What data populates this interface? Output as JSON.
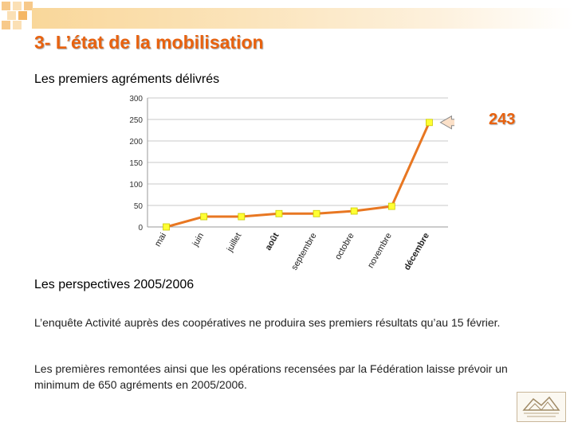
{
  "slide": {
    "title": "3- L’état de la mobilisation",
    "subtitle_agrements": "Les premiers agréments délivrés",
    "subtitle_perspectives": "Les perspectives 2005/2006",
    "paragraphs": [
      "L’enquête Activité auprès des coopératives ne produira ses premiers résultats qu’au 15 février.",
      "Les premières remontées ainsi que les opérations recensées par la Fédération laisse prévoir un minimum de 650 agréments en 2005/2006."
    ]
  },
  "colors": {
    "accent": "#e8620f",
    "line": "#e87722",
    "marker": "#ffff33"
  },
  "chart_data": {
    "type": "line",
    "categories": [
      "mai",
      "juin",
      "juillet",
      "août",
      "septembre",
      "octobre",
      "novembre",
      "décembre"
    ],
    "values": [
      0,
      24,
      24,
      31,
      31,
      37,
      48,
      243
    ],
    "ylim": [
      0,
      300
    ],
    "yticks": [
      0,
      50,
      100,
      150,
      200,
      250,
      300
    ],
    "annotation": "243",
    "grid": true
  }
}
